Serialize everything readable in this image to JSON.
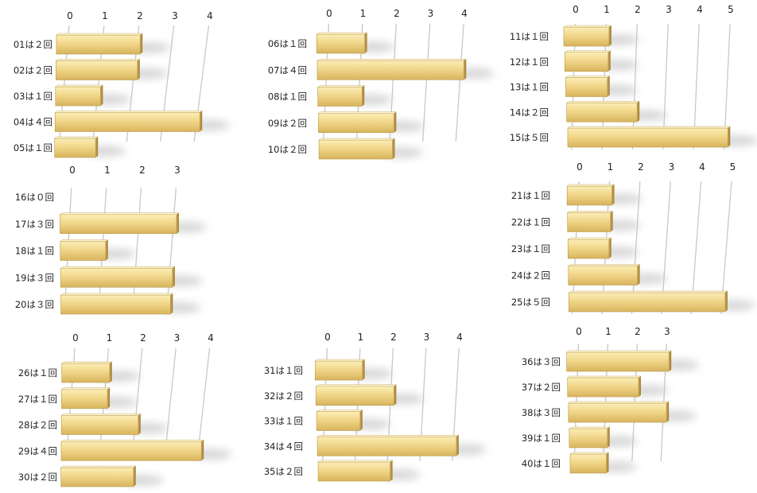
{
  "bar_color": "#f0d480",
  "bar_edge_color": "#b89a4a",
  "grid_color": "#c8c8c8",
  "chart_data": [
    {
      "type": "bar",
      "orientation": "horizontal",
      "categories": [
        "01は２回",
        "02は２回",
        "03は１回",
        "04は４回",
        "05は１回"
      ],
      "values": [
        2,
        2,
        1,
        4,
        1
      ],
      "xticks": [
        0,
        1,
        2,
        3,
        4
      ]
    },
    {
      "type": "bar",
      "orientation": "horizontal",
      "categories": [
        "06は１回",
        "07は４回",
        "08は１回",
        "09は２回",
        "10は２回"
      ],
      "values": [
        1,
        4,
        1,
        2,
        2
      ],
      "xticks": [
        0,
        1,
        2,
        3,
        4
      ]
    },
    {
      "type": "bar",
      "orientation": "horizontal",
      "categories": [
        "11は１回",
        "12は１回",
        "13は１回",
        "14は２回",
        "15は５回"
      ],
      "values": [
        1,
        1,
        1,
        2,
        5
      ],
      "xticks": [
        0,
        1,
        2,
        3,
        4,
        5
      ]
    },
    {
      "type": "bar",
      "orientation": "horizontal",
      "categories": [
        "16は０回",
        "17は３回",
        "18は１回",
        "19は３回",
        "20は３回"
      ],
      "values": [
        0,
        3,
        1,
        3,
        3
      ],
      "xticks": [
        0,
        1,
        2,
        3
      ]
    },
    {
      "type": "bar",
      "orientation": "horizontal",
      "categories": [
        "21は１回",
        "22は１回",
        "23は１回",
        "24は２回",
        "25は５回"
      ],
      "values": [
        1,
        1,
        1,
        2,
        5
      ],
      "xticks": [
        0,
        1,
        2,
        3,
        4,
        5
      ]
    },
    {
      "type": "bar",
      "orientation": "horizontal",
      "categories": [
        "26は１回",
        "27は１回",
        "28は２回",
        "29は４回",
        "30は２回"
      ],
      "values": [
        1,
        1,
        2,
        4,
        2
      ],
      "xticks": [
        0,
        1,
        2,
        3,
        4
      ]
    },
    {
      "type": "bar",
      "orientation": "horizontal",
      "categories": [
        "31は１回",
        "32は２回",
        "33は１回",
        "34は４回",
        "35は２回"
      ],
      "values": [
        1,
        2,
        1,
        4,
        2
      ],
      "xticks": [
        0,
        1,
        2,
        3,
        4
      ]
    },
    {
      "type": "bar",
      "orientation": "horizontal",
      "categories": [
        "36は３回",
        "37は２回",
        "38は３回",
        "39は１回",
        "40は１回"
      ],
      "values": [
        3,
        2,
        3,
        1,
        1
      ],
      "xticks": [
        0,
        1,
        2,
        3
      ]
    }
  ]
}
